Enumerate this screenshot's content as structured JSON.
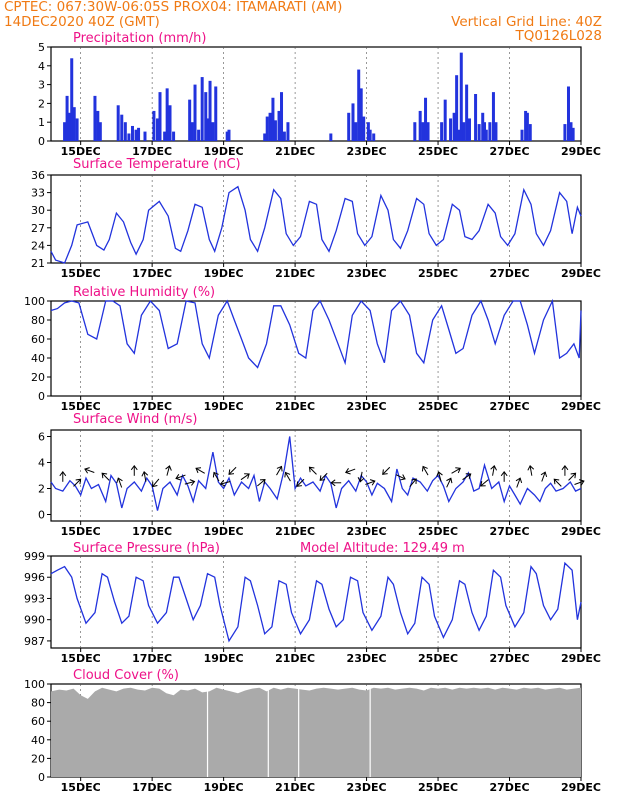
{
  "header": {
    "line1_left": "CPTEC:   067:30W-06:05S   PROX04: ITAMARATI (AM)",
    "line2_left": "14DEC2020 40Z (GMT)",
    "line2_right": "Vertical Grid Line: 40Z",
    "line3_right": "TQ0126L028"
  },
  "colors": {
    "header": "#f07a14",
    "panel_title": "#ee1188",
    "line": "#2233dd",
    "bar": "#2233dd",
    "cloud": "#aaaaaa"
  },
  "x_axis": {
    "min_day": 14.17,
    "max_day": 29.0,
    "ticks": [
      {
        "day": 15,
        "label": "15DEC"
      },
      {
        "day": 17,
        "label": "17DEC"
      },
      {
        "day": 19,
        "label": "19DEC"
      },
      {
        "day": 21,
        "label": "21DEC"
      },
      {
        "day": 23,
        "label": "23DEC"
      },
      {
        "day": 25,
        "label": "25DEC"
      },
      {
        "day": 27,
        "label": "27DEC"
      },
      {
        "day": 29,
        "label": "29DEC"
      }
    ]
  },
  "chart_data": [
    {
      "type": "bar",
      "title": "Precipitation (mm/h)",
      "ylim": [
        0,
        5
      ],
      "yticks": [
        0,
        1,
        2,
        3,
        4,
        5
      ],
      "x": [
        14.55,
        14.62,
        14.68,
        14.75,
        14.82,
        14.9,
        15.4,
        15.48,
        15.55,
        16.05,
        16.15,
        16.25,
        16.35,
        16.45,
        16.55,
        16.62,
        16.8,
        17.05,
        17.15,
        17.22,
        17.35,
        17.42,
        17.5,
        17.6,
        18.05,
        18.12,
        18.2,
        18.3,
        18.4,
        18.5,
        18.55,
        18.62,
        18.7,
        18.78,
        19.1,
        19.15,
        20.15,
        20.22,
        20.3,
        20.38,
        20.45,
        20.55,
        20.62,
        20.7,
        20.8,
        22.0,
        22.5,
        22.62,
        22.7,
        22.78,
        22.85,
        22.92,
        23.05,
        23.1,
        23.2,
        24.35,
        24.5,
        24.58,
        24.65,
        24.72,
        25.1,
        25.2,
        25.35,
        25.45,
        25.52,
        25.58,
        25.65,
        25.72,
        25.8,
        25.88,
        26.05,
        26.15,
        26.25,
        26.3,
        26.35,
        26.45,
        26.55,
        26.62,
        27.35,
        27.45,
        27.5,
        27.58,
        28.55,
        28.65,
        28.72,
        28.78
      ],
      "values": [
        1.0,
        2.4,
        1.5,
        4.4,
        1.8,
        1.2,
        2.4,
        1.6,
        1.0,
        1.9,
        1.4,
        1.0,
        0.4,
        0.8,
        0.6,
        0.7,
        0.5,
        1.6,
        1.2,
        2.6,
        0.5,
        2.8,
        1.9,
        0.5,
        2.2,
        1.0,
        3.0,
        0.6,
        3.4,
        2.6,
        1.2,
        3.2,
        1.0,
        2.9,
        0.5,
        0.6,
        0.4,
        1.3,
        1.5,
        2.3,
        1.1,
        1.6,
        2.6,
        0.5,
        1.0,
        0.4,
        1.5,
        2.0,
        1.0,
        3.8,
        2.8,
        1.3,
        1.0,
        0.6,
        0.4,
        1.0,
        1.6,
        1.0,
        2.3,
        1.0,
        1.0,
        2.2,
        1.2,
        1.5,
        3.5,
        0.6,
        4.7,
        1.0,
        3.0,
        1.2,
        2.5,
        0.9,
        1.5,
        1.0,
        0.6,
        1.0,
        2.6,
        1.0,
        0.6,
        1.6,
        1.5,
        0.9,
        0.9,
        2.9,
        1.0,
        0.7
      ],
      "xlabel": "",
      "ylabel": ""
    },
    {
      "type": "line",
      "title": "Surface Temperature (nC)",
      "ylim": [
        21,
        36
      ],
      "yticks": [
        21,
        24,
        27,
        30,
        33,
        36
      ],
      "x": [
        14.17,
        14.3,
        14.55,
        14.75,
        14.9,
        15.2,
        15.45,
        15.65,
        15.8,
        16.0,
        16.2,
        16.4,
        16.55,
        16.75,
        16.9,
        17.2,
        17.45,
        17.65,
        17.8,
        18.0,
        18.2,
        18.4,
        18.6,
        18.75,
        18.95,
        19.15,
        19.4,
        19.6,
        19.75,
        19.95,
        20.15,
        20.4,
        20.6,
        20.75,
        20.95,
        21.15,
        21.4,
        21.6,
        21.75,
        21.95,
        22.15,
        22.4,
        22.6,
        22.75,
        22.95,
        23.15,
        23.4,
        23.6,
        23.75,
        23.95,
        24.15,
        24.4,
        24.6,
        24.75,
        24.95,
        25.15,
        25.4,
        25.6,
        25.75,
        25.95,
        26.15,
        26.4,
        26.6,
        26.75,
        26.95,
        27.15,
        27.4,
        27.6,
        27.75,
        27.95,
        28.15,
        28.4,
        28.6,
        28.75,
        28.9,
        29.0
      ],
      "values": [
        23.0,
        21.5,
        21.0,
        24.0,
        27.5,
        28.0,
        24.0,
        23.2,
        25.0,
        29.5,
        28.0,
        24.5,
        22.5,
        25.0,
        30.0,
        31.5,
        29.0,
        23.5,
        23.0,
        26.5,
        31.0,
        30.5,
        25.0,
        23.0,
        27.0,
        33.0,
        34.0,
        30.0,
        25.0,
        23.0,
        27.0,
        33.5,
        32.0,
        26.0,
        24.0,
        25.5,
        31.5,
        31.0,
        25.0,
        23.0,
        26.5,
        32.0,
        31.5,
        26.0,
        24.0,
        25.5,
        32.5,
        30.0,
        25.0,
        23.5,
        26.5,
        32.0,
        31.0,
        26.0,
        24.0,
        25.0,
        31.0,
        30.0,
        25.5,
        25.0,
        26.5,
        31.0,
        29.5,
        25.5,
        24.0,
        26.0,
        33.5,
        31.0,
        26.0,
        24.0,
        26.5,
        33.0,
        31.5,
        26.0,
        30.5,
        29.0
      ],
      "xlabel": "",
      "ylabel": ""
    },
    {
      "type": "line",
      "title": "Relative Humidity (%)",
      "ylim": [
        0,
        100
      ],
      "yticks": [
        0,
        20,
        40,
        60,
        80,
        100
      ],
      "x": [
        14.17,
        14.35,
        14.55,
        14.75,
        14.95,
        15.2,
        15.45,
        15.7,
        15.9,
        16.1,
        16.3,
        16.5,
        16.7,
        16.95,
        17.2,
        17.45,
        17.7,
        17.95,
        18.2,
        18.4,
        18.6,
        18.85,
        19.1,
        19.3,
        19.5,
        19.7,
        19.95,
        20.2,
        20.4,
        20.6,
        20.85,
        21.1,
        21.3,
        21.5,
        21.7,
        21.95,
        22.2,
        22.4,
        22.6,
        22.85,
        23.1,
        23.3,
        23.5,
        23.7,
        23.95,
        24.2,
        24.4,
        24.6,
        24.85,
        25.1,
        25.3,
        25.5,
        25.7,
        25.95,
        26.2,
        26.4,
        26.6,
        26.85,
        27.1,
        27.3,
        27.5,
        27.7,
        27.95,
        28.2,
        28.4,
        28.6,
        28.8,
        28.95,
        29.0
      ],
      "values": [
        90,
        92,
        98,
        100,
        98,
        65,
        60,
        100,
        100,
        95,
        55,
        45,
        85,
        100,
        90,
        50,
        55,
        100,
        98,
        55,
        40,
        85,
        100,
        80,
        60,
        40,
        30,
        55,
        95,
        95,
        75,
        45,
        40,
        90,
        100,
        80,
        55,
        35,
        85,
        100,
        90,
        55,
        35,
        90,
        100,
        85,
        45,
        35,
        80,
        95,
        70,
        45,
        50,
        85,
        100,
        80,
        55,
        85,
        100,
        100,
        75,
        45,
        80,
        100,
        40,
        45,
        55,
        40,
        90
      ],
      "xlabel": "",
      "ylabel": ""
    },
    {
      "type": "line",
      "title": "Surface Wind (m/s)",
      "ylim": [
        -0.5,
        6.5
      ],
      "yticks": [
        0,
        2,
        4,
        6
      ],
      "x": [
        14.17,
        14.3,
        14.5,
        14.7,
        14.85,
        15.0,
        15.15,
        15.3,
        15.5,
        15.7,
        15.85,
        16.0,
        16.15,
        16.3,
        16.5,
        16.7,
        16.85,
        17.0,
        17.15,
        17.3,
        17.5,
        17.7,
        17.85,
        18.0,
        18.15,
        18.3,
        18.5,
        18.7,
        18.85,
        19.0,
        19.15,
        19.3,
        19.5,
        19.7,
        19.85,
        20.0,
        20.15,
        20.3,
        20.5,
        20.7,
        20.85,
        21.0,
        21.15,
        21.3,
        21.5,
        21.7,
        21.85,
        22.0,
        22.15,
        22.3,
        22.5,
        22.7,
        22.85,
        23.0,
        23.15,
        23.3,
        23.5,
        23.7,
        23.85,
        24.0,
        24.15,
        24.3,
        24.5,
        24.7,
        24.85,
        25.0,
        25.15,
        25.3,
        25.5,
        25.7,
        25.85,
        26.0,
        26.15,
        26.3,
        26.5,
        26.7,
        26.85,
        27.0,
        27.15,
        27.3,
        27.5,
        27.7,
        27.85,
        28.0,
        28.15,
        28.3,
        28.5,
        28.7,
        28.85,
        29.0
      ],
      "values": [
        2.5,
        2.0,
        1.8,
        2.6,
        2.2,
        1.5,
        2.8,
        2.0,
        2.3,
        1.0,
        3.0,
        2.4,
        0.5,
        2.0,
        2.5,
        1.8,
        2.8,
        2.2,
        0.3,
        2.0,
        2.5,
        1.5,
        3.0,
        2.2,
        1.0,
        2.6,
        2.0,
        4.8,
        2.5,
        2.0,
        2.8,
        1.5,
        2.5,
        2.0,
        3.0,
        1.0,
        2.5,
        2.0,
        1.2,
        3.5,
        6.0,
        2.0,
        2.8,
        2.2,
        2.5,
        1.8,
        3.0,
        2.4,
        0.5,
        2.0,
        2.6,
        1.8,
        3.0,
        2.5,
        1.5,
        2.4,
        2.0,
        1.0,
        3.5,
        2.0,
        1.5,
        2.8,
        2.5,
        1.8,
        2.6,
        3.0,
        2.2,
        1.0,
        2.0,
        2.5,
        3.2,
        1.8,
        2.0,
        3.8,
        2.0,
        2.5,
        1.0,
        2.2,
        1.5,
        0.8,
        2.0,
        1.5,
        1.0,
        2.0,
        2.4,
        1.8,
        2.0,
        2.5,
        1.8,
        2.0
      ],
      "arrows": {
        "x": [
          14.5,
          14.9,
          15.25,
          15.7,
          16.1,
          16.5,
          16.8,
          17.1,
          17.45,
          17.8,
          18.05,
          18.35,
          18.8,
          19.05,
          19.25,
          19.6,
          20.05,
          20.55,
          20.8,
          21.15,
          21.5,
          21.8,
          22.15,
          22.55,
          22.85,
          23.1,
          23.55,
          23.95,
          24.3,
          24.65,
          25.05,
          25.3,
          25.5,
          25.8,
          26.3,
          26.55,
          26.85,
          27.25,
          27.6,
          27.95,
          28.35,
          28.55,
          28.75,
          28.95
        ],
        "dir_deg": [
          90,
          45,
          160,
          135,
          110,
          90,
          100,
          230,
          75,
          200,
          15,
          150,
          120,
          195,
          225,
          35,
          40,
          60,
          120,
          225,
          135,
          225,
          180,
          200,
          260,
          20,
          225,
          335,
          50,
          120,
          105,
          65,
          30,
          35,
          220,
          80,
          90,
          70,
          100,
          70,
          135,
          90,
          45,
          20
        ]
      },
      "xlabel": "",
      "ylabel": ""
    },
    {
      "type": "line",
      "title": "Surface Pressure (hPa)",
      "subtitle": "Model Altitude: 129.49 m",
      "ylim": [
        986,
        999
      ],
      "yticks": [
        987,
        990,
        993,
        996,
        999
      ],
      "x": [
        14.17,
        14.35,
        14.55,
        14.75,
        14.9,
        15.15,
        15.4,
        15.6,
        15.75,
        15.95,
        16.15,
        16.35,
        16.55,
        16.75,
        16.9,
        17.15,
        17.4,
        17.6,
        17.75,
        17.95,
        18.15,
        18.35,
        18.55,
        18.75,
        18.9,
        19.15,
        19.4,
        19.6,
        19.75,
        19.95,
        20.15,
        20.35,
        20.55,
        20.75,
        20.9,
        21.15,
        21.4,
        21.6,
        21.75,
        21.95,
        22.15,
        22.35,
        22.55,
        22.75,
        22.9,
        23.15,
        23.4,
        23.6,
        23.75,
        23.95,
        24.15,
        24.35,
        24.55,
        24.75,
        24.9,
        25.15,
        25.4,
        25.6,
        25.75,
        25.95,
        26.15,
        26.35,
        26.55,
        26.75,
        26.9,
        27.15,
        27.4,
        27.6,
        27.75,
        27.95,
        28.15,
        28.35,
        28.55,
        28.75,
        28.9,
        29.0
      ],
      "values": [
        996.5,
        997,
        997.5,
        996,
        993,
        989.5,
        991,
        996.5,
        996,
        992.5,
        989.5,
        990.5,
        996,
        995.5,
        992,
        989.5,
        991,
        996,
        996,
        993,
        990,
        992,
        996.5,
        996,
        992,
        987,
        989,
        996,
        995.5,
        992,
        988,
        989,
        995.5,
        995,
        991,
        988,
        990,
        995.5,
        995,
        991.5,
        989,
        990,
        996,
        995.5,
        991,
        988.5,
        990.5,
        996,
        995,
        991,
        988,
        989.5,
        996,
        995,
        990.5,
        987.5,
        990,
        995.5,
        995,
        991,
        988.5,
        990.5,
        997,
        996,
        992,
        989,
        991,
        997.5,
        996.5,
        992,
        990,
        991.5,
        998,
        997,
        990,
        992.5
      ],
      "xlabel": "",
      "ylabel": ""
    },
    {
      "type": "area",
      "title": "Cloud Cover (%)",
      "ylim": [
        0,
        100
      ],
      "yticks": [
        0,
        20,
        40,
        60,
        80,
        100
      ],
      "x": [
        14.17,
        14.4,
        14.6,
        14.8,
        15.0,
        15.2,
        15.4,
        15.6,
        15.8,
        16.0,
        16.2,
        16.4,
        16.6,
        16.8,
        17.0,
        17.2,
        17.4,
        17.6,
        17.8,
        18.0,
        18.2,
        18.4,
        18.6,
        18.8,
        19.0,
        19.2,
        19.4,
        19.6,
        19.8,
        20.0,
        20.2,
        20.4,
        20.6,
        20.8,
        21.0,
        21.2,
        21.4,
        21.6,
        21.8,
        22.0,
        22.2,
        22.4,
        22.6,
        22.8,
        23.0,
        23.2,
        23.4,
        23.6,
        23.8,
        24.0,
        24.2,
        24.4,
        24.6,
        24.8,
        25.0,
        25.2,
        25.4,
        25.6,
        25.8,
        26.0,
        26.2,
        26.4,
        26.6,
        26.8,
        27.0,
        27.2,
        27.4,
        27.6,
        27.8,
        28.0,
        28.2,
        28.4,
        28.6,
        28.8,
        29.0
      ],
      "values": [
        92,
        94,
        93,
        95,
        88,
        84,
        92,
        96,
        94,
        92,
        95,
        96,
        94,
        93,
        96,
        95,
        90,
        88,
        94,
        93,
        95,
        91,
        92,
        96,
        94,
        92,
        90,
        93,
        95,
        96,
        92,
        96,
        94,
        96,
        95,
        94,
        93,
        95,
        96,
        95,
        94,
        95,
        96,
        94,
        93,
        96,
        95,
        96,
        94,
        95,
        96,
        95,
        93,
        96,
        95,
        96,
        94,
        96,
        95,
        96,
        95,
        96,
        94,
        96,
        95,
        94,
        96,
        95,
        96,
        94,
        95,
        96,
        94,
        95,
        96
      ],
      "xlabel": "",
      "ylabel": ""
    }
  ]
}
